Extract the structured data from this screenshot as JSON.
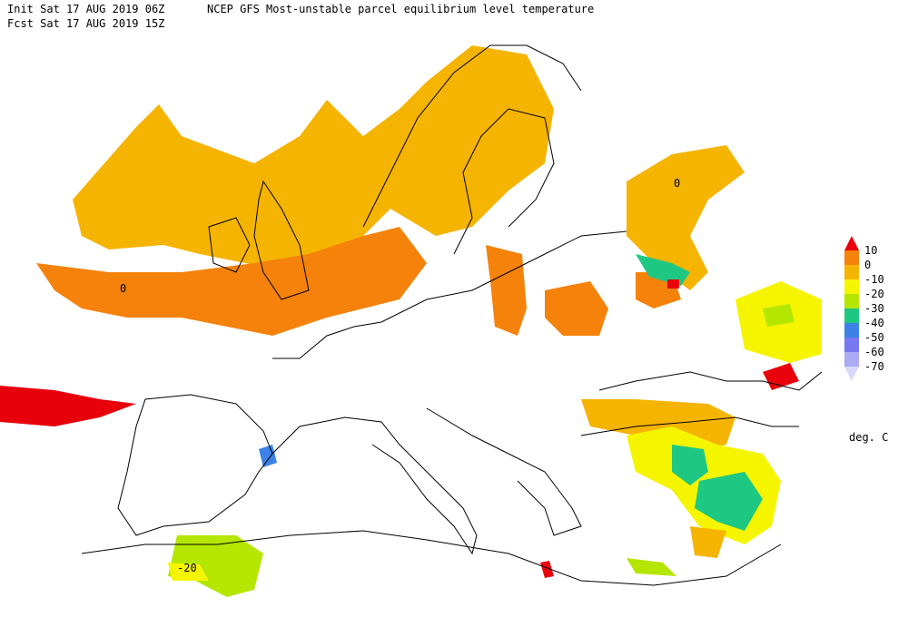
{
  "header": {
    "init": "Init  Sat 17 AUG 2019 06Z",
    "fcst": "Fcst Sat 17 AUG 2019 15Z",
    "title": "NCEP GFS Most-unstable parcel equilibrium level temperature"
  },
  "legend": {
    "labels": [
      "10",
      "0",
      "-10",
      "-20",
      "-30",
      "-40",
      "-50",
      "-60",
      "-70"
    ],
    "colors": [
      "#e8000b",
      "#f5820a",
      "#f5b400",
      "#f5f500",
      "#b4e600",
      "#1ec882",
      "#3c82e6",
      "#7878f0",
      "#aaaaf5",
      "#d8d8fa"
    ],
    "unit": "deg. C"
  },
  "contour_labels": [
    "0",
    "0",
    "-20"
  ]
}
